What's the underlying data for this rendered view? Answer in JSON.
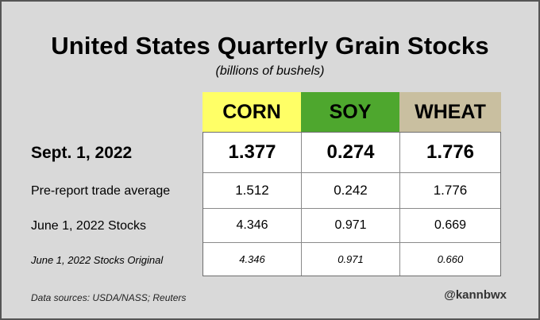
{
  "title": "United States Quarterly Grain Stocks",
  "subtitle": "(billions of bushels)",
  "columns": [
    {
      "label": "CORN",
      "color": "#ffff66"
    },
    {
      "label": "SOY",
      "color": "#4ea72e"
    },
    {
      "label": "WHEAT",
      "color": "#c9bfa0"
    }
  ],
  "rows": [
    {
      "label": "Sept. 1, 2022",
      "values": [
        "1.377",
        "0.274",
        "1.776"
      ]
    },
    {
      "label": "Pre-report trade average",
      "values": [
        "1.512",
        "0.242",
        "1.776"
      ]
    },
    {
      "label": "June 1, 2022 Stocks",
      "values": [
        "4.346",
        "0.971",
        "0.669"
      ]
    },
    {
      "label": "June 1, 2022 Stocks Original",
      "values": [
        "4.346",
        "0.971",
        "0.660"
      ]
    }
  ],
  "footer": {
    "sources": "Data sources: USDA/NASS; Reuters",
    "handle": "@kannbwx"
  }
}
